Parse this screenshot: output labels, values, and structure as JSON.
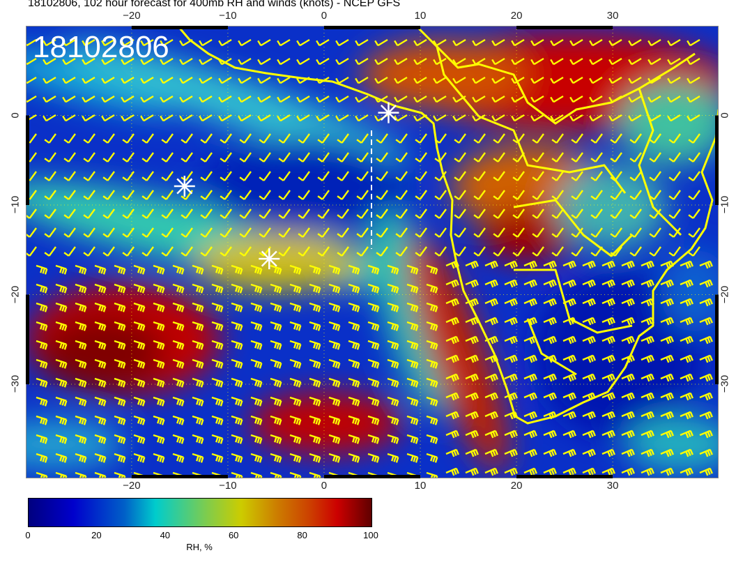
{
  "title": "18102806, 102 hour forecast for 400mb RH and winds (knots) - NCEP GFS",
  "stamp": "18102806",
  "map": {
    "field": "400mb relative humidity",
    "overlay": "wind barbs (knots), coastlines and country borders in yellow",
    "lon_range": [
      -31,
      41
    ],
    "lat_range": [
      -40.5,
      10
    ],
    "lon_ticks": [
      "−20",
      "−10",
      "0",
      "10",
      "20",
      "30"
    ],
    "lat_ticks": [
      "0",
      "−10",
      "−20",
      "−30"
    ],
    "markers": [
      {
        "type": "star",
        "lon": -14.5,
        "lat": -7.9
      },
      {
        "type": "star",
        "lon": -5.7,
        "lat": -16
      },
      {
        "type": "star",
        "lon": 6.7,
        "lat": 0.3
      }
    ],
    "colors": {
      "coast": "#ffff00",
      "barb": "#ffff00",
      "marker": "#ffffff"
    }
  },
  "colorbar": {
    "label": "RH, %",
    "ticks": [
      "0",
      "20",
      "40",
      "60",
      "80",
      "100"
    ],
    "range": [
      0,
      100
    ]
  }
}
